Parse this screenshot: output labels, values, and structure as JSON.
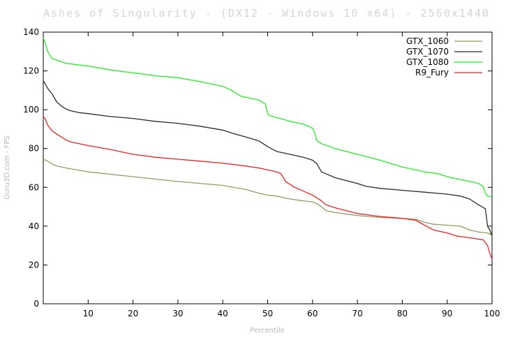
{
  "chart_data": {
    "type": "line",
    "title": "Ashes of Singularity - (DX12 - Windows 10 x64) - 2560x1440",
    "xlabel": "Percentile",
    "ylabel": "Guru3D.com - FPS",
    "xlim": [
      0,
      100
    ],
    "ylim": [
      0,
      140
    ],
    "xticks": [
      10,
      20,
      30,
      40,
      50,
      60,
      70,
      80,
      90,
      100
    ],
    "yticks": [
      0,
      20,
      40,
      60,
      80,
      100,
      120,
      140
    ],
    "grid": false,
    "legend_position": "top-right",
    "series": [
      {
        "name": "GTX_1060",
        "color": "#8f9d5f",
        "x": [
          0,
          1,
          2,
          3,
          5,
          10,
          20,
          30,
          40,
          45,
          48,
          50,
          52,
          53,
          55,
          58,
          60,
          61,
          62,
          63,
          65,
          70,
          75,
          80,
          83,
          85,
          87,
          90,
          93,
          95,
          97,
          99,
          99.5,
          100
        ],
        "y": [
          74.5,
          73.5,
          72,
          71,
          70,
          68,
          65.5,
          63,
          61,
          59,
          57,
          56,
          55.5,
          55,
          54,
          53,
          52.5,
          51.5,
          50,
          48,
          47,
          45.5,
          44.5,
          44,
          43.5,
          42,
          41,
          40.5,
          40,
          38,
          37,
          36.5,
          36,
          35.5
        ]
      },
      {
        "name": "GTX_1070",
        "color": "#2b2b2b",
        "x": [
          0,
          0.5,
          1,
          2,
          3,
          4,
          5,
          6,
          8,
          10,
          15,
          20,
          25,
          30,
          35,
          40,
          42,
          45,
          48,
          50,
          52,
          55,
          58,
          60,
          61,
          62,
          63,
          65,
          70,
          72,
          75,
          80,
          85,
          90,
          93,
          95,
          97,
          98.5,
          99,
          99.5,
          100
        ],
        "y": [
          115,
          113,
          111,
          108,
          104,
          102,
          100.5,
          99.5,
          98.5,
          98,
          96.5,
          95.5,
          94,
          93,
          91.5,
          89.5,
          88,
          86,
          84,
          81,
          78.5,
          77,
          75.5,
          74,
          72,
          68,
          67,
          65,
          62,
          60.5,
          59.5,
          58.5,
          57.5,
          56.5,
          55.5,
          54,
          51,
          49,
          40,
          38,
          35
        ]
      },
      {
        "name": "GTX_1080",
        "color": "#22ee22",
        "x": [
          0,
          0.5,
          1,
          1.5,
          2,
          3,
          5,
          8,
          10,
          15,
          20,
          25,
          30,
          35,
          40,
          42,
          44,
          46,
          48,
          49.5,
          50,
          50.5,
          52,
          55,
          58,
          60,
          60.5,
          61,
          62,
          65,
          70,
          75,
          80,
          83,
          85,
          88,
          90,
          93,
          95,
          97,
          98,
          98.5,
          99,
          100
        ],
        "y": [
          137,
          134,
          130,
          128,
          126.5,
          125.5,
          124,
          123,
          122.5,
          120.5,
          119,
          117.5,
          116.5,
          114.5,
          112,
          110,
          107,
          106,
          105,
          103,
          98,
          97,
          96,
          94,
          92.5,
          90.5,
          88,
          84,
          82.5,
          80,
          77,
          74,
          70.5,
          69,
          68,
          67,
          65.5,
          64,
          63,
          62,
          60.5,
          57,
          55.5,
          55
        ]
      },
      {
        "name": "R9_Fury",
        "color": "#ee2222",
        "x": [
          0,
          0.5,
          1,
          2,
          3,
          4,
          5,
          6,
          8,
          10,
          15,
          20,
          25,
          30,
          35,
          40,
          45,
          48,
          50,
          52,
          53,
          54,
          56,
          58,
          60,
          62,
          63,
          65,
          70,
          75,
          80,
          83,
          85,
          87,
          90,
          92,
          95,
          98,
          99,
          99.5,
          100
        ],
        "y": [
          96.5,
          95,
          92,
          89,
          87.5,
          86,
          84.5,
          83.5,
          82.5,
          81.5,
          79.5,
          77,
          75.5,
          74.5,
          73.5,
          72.5,
          71,
          70,
          69,
          68,
          67,
          63,
          60,
          58,
          56,
          53,
          51,
          49.5,
          46.5,
          45,
          44,
          43,
          40.5,
          38,
          36.5,
          35,
          34,
          33,
          30,
          26,
          23
        ]
      }
    ]
  }
}
